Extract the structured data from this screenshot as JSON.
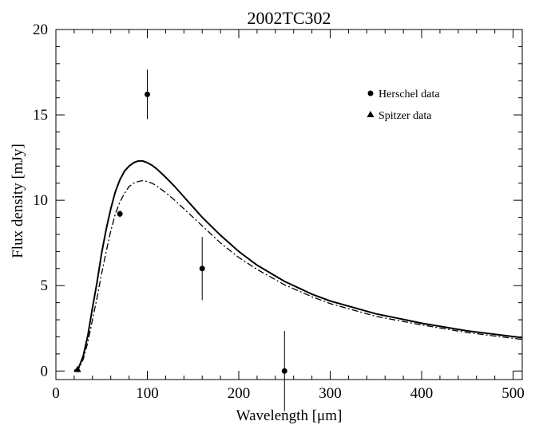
{
  "chart_data": {
    "type": "scatter",
    "title": "2002TC302",
    "xlabel": "Wavelength [μm]",
    "ylabel": "Flux density [mJy]",
    "xlim": [
      0,
      510
    ],
    "ylim": [
      -0.5,
      20
    ],
    "x_ticks": [
      0,
      100,
      200,
      300,
      400,
      500
    ],
    "y_ticks": [
      0,
      5,
      10,
      15,
      20
    ],
    "grid": false,
    "legend_position": "top-right",
    "series": [
      {
        "name": "Herschel data",
        "kind": "points",
        "marker": "circle",
        "points": [
          {
            "x": 70,
            "y": 9.2,
            "err": 0.2
          },
          {
            "x": 100,
            "y": 16.2,
            "err": 1.45
          },
          {
            "x": 160,
            "y": 6.0,
            "err": 1.85
          },
          {
            "x": 250,
            "y": 0.0,
            "err": 2.35
          }
        ]
      },
      {
        "name": "Spitzer data",
        "kind": "points",
        "marker": "triangle",
        "points": [
          {
            "x": 23.7,
            "y": 0.1,
            "err": 0.05
          }
        ]
      },
      {
        "kind": "curve",
        "style": "solid",
        "x": [
          20,
          25,
          30,
          35,
          40,
          45,
          50,
          55,
          60,
          65,
          70,
          75,
          80,
          85,
          90,
          95,
          100,
          105,
          110,
          120,
          130,
          140,
          150,
          160,
          180,
          200,
          220,
          250,
          280,
          300,
          350,
          400,
          450,
          510
        ],
        "y": [
          0.0,
          0.2,
          0.9,
          2.1,
          3.7,
          5.2,
          6.9,
          8.3,
          9.5,
          10.5,
          11.2,
          11.7,
          12.0,
          12.2,
          12.3,
          12.3,
          12.2,
          12.05,
          11.85,
          11.35,
          10.8,
          10.2,
          9.6,
          9.0,
          7.95,
          7.0,
          6.2,
          5.25,
          4.5,
          4.1,
          3.35,
          2.8,
          2.35,
          1.95
        ]
      },
      {
        "kind": "curve",
        "style": "dash-dot",
        "x": [
          20,
          25,
          30,
          35,
          40,
          45,
          50,
          55,
          60,
          65,
          70,
          75,
          80,
          85,
          90,
          95,
          100,
          105,
          110,
          120,
          130,
          140,
          150,
          160,
          180,
          200,
          220,
          250,
          280,
          300,
          350,
          400,
          450,
          510
        ],
        "y": [
          0.0,
          0.15,
          0.7,
          1.7,
          3.0,
          4.3,
          5.7,
          7.0,
          8.2,
          9.2,
          9.9,
          10.4,
          10.8,
          11.0,
          11.1,
          11.15,
          11.1,
          11.0,
          10.85,
          10.45,
          10.0,
          9.5,
          9.0,
          8.5,
          7.5,
          6.65,
          5.95,
          5.05,
          4.35,
          3.95,
          3.2,
          2.7,
          2.25,
          1.85
        ]
      }
    ]
  }
}
